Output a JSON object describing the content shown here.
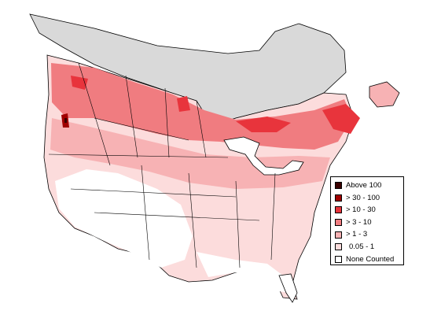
{
  "legend": {
    "items": [
      {
        "label": "Above 100",
        "color": "#3a0000"
      },
      {
        "label": "> 30 - 100",
        "color": "#a00000"
      },
      {
        "label": "> 10 - 30",
        "color": "#e8343c"
      },
      {
        "label": "> 3 - 10",
        "color": "#f07c80"
      },
      {
        "label": "> 1 - 3",
        "color": "#f7b2b4"
      },
      {
        "label": "0.05 - 1",
        "color": "#fcdcdc"
      },
      {
        "label": "None Counted",
        "color": "#ffffff"
      }
    ]
  },
  "colors": {
    "no_data_region": "#d9d9d9",
    "boundary_lines": "#000000",
    "background": "#ffffff"
  }
}
